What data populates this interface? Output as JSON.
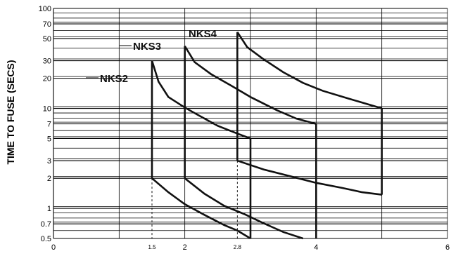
{
  "chart_data": {
    "type": "line",
    "title": "",
    "xlabel": "",
    "ylabel": "TIME TO FUSE (SECS)",
    "y_scale": "log",
    "xlim": [
      0,
      6
    ],
    "ylim": [
      0.5,
      100
    ],
    "x_ticks": [
      {
        "value": 0,
        "label": "0",
        "size": "normal"
      },
      {
        "value": 1.5,
        "label": "1.5",
        "size": "small"
      },
      {
        "value": 2,
        "label": "2",
        "size": "normal"
      },
      {
        "value": 2.8,
        "label": "2.8",
        "size": "small"
      },
      {
        "value": 4,
        "label": "4",
        "size": "normal"
      },
      {
        "value": 6,
        "label": "6",
        "size": "normal"
      }
    ],
    "y_ticks": [
      {
        "value": 0.5,
        "label": "0.5"
      },
      {
        "value": 0.7,
        "label": "0.7"
      },
      {
        "value": 1,
        "label": "1"
      },
      {
        "value": 2,
        "label": "2"
      },
      {
        "value": 3,
        "label": "3"
      },
      {
        "value": 5,
        "label": "5"
      },
      {
        "value": 7,
        "label": "7"
      },
      {
        "value": 10,
        "label": "10"
      },
      {
        "value": 20,
        "label": "20"
      },
      {
        "value": 30,
        "label": "30"
      },
      {
        "value": 50,
        "label": "50"
      },
      {
        "value": 70,
        "label": "70"
      },
      {
        "value": 100,
        "label": "100"
      }
    ],
    "minor_y_grid": [
      0.6,
      0.8,
      0.9,
      4,
      6,
      8,
      9,
      40,
      60,
      80,
      90
    ],
    "x_grid": [
      1,
      2,
      3,
      4,
      5,
      6
    ],
    "grid": true,
    "series": [
      {
        "name": "NKS2",
        "upper": [
          [
            1.5,
            30
          ],
          [
            1.6,
            18.5
          ],
          [
            1.75,
            13
          ],
          [
            2.0,
            10.2
          ],
          [
            2.2,
            8.6
          ],
          [
            2.5,
            6.7
          ],
          [
            2.8,
            5.6
          ],
          [
            3.0,
            5
          ]
        ],
        "lower": [
          [
            1.5,
            2
          ],
          [
            1.75,
            1.45
          ],
          [
            2.0,
            1.1
          ],
          [
            2.3,
            0.86
          ],
          [
            2.6,
            0.68
          ],
          [
            2.8,
            0.6
          ],
          [
            3.0,
            0.5
          ]
        ],
        "verticals": [
          [
            [
              1.5,
              2
            ],
            [
              1.5,
              30
            ]
          ],
          [
            [
              3.0,
              5
            ],
            [
              3.0,
              0.5
            ]
          ]
        ],
        "dashed_from": [
          1.5,
          2
        ]
      },
      {
        "name": "NKS3",
        "upper": [
          [
            2.0,
            42
          ],
          [
            2.15,
            29
          ],
          [
            2.4,
            22
          ],
          [
            2.7,
            17
          ],
          [
            3.0,
            13
          ],
          [
            3.4,
            9.6
          ],
          [
            3.7,
            7.9
          ],
          [
            4.0,
            7
          ]
        ],
        "lower": [
          [
            2.0,
            2
          ],
          [
            2.3,
            1.4
          ],
          [
            2.6,
            1.06
          ],
          [
            2.9,
            0.88
          ],
          [
            3.2,
            0.71
          ],
          [
            3.5,
            0.58
          ],
          [
            3.8,
            0.5
          ]
        ],
        "verticals": [
          [
            [
              2.0,
              2
            ],
            [
              2.0,
              42
            ]
          ],
          [
            [
              4.0,
              7
            ],
            [
              4.0,
              0.5
            ]
          ]
        ],
        "dashed_from": null
      },
      {
        "name": "NKS4",
        "upper": [
          [
            2.8,
            58
          ],
          [
            2.95,
            41
          ],
          [
            3.2,
            31
          ],
          [
            3.5,
            23
          ],
          [
            3.8,
            18
          ],
          [
            4.1,
            15
          ],
          [
            4.5,
            12.5
          ],
          [
            5.0,
            10
          ]
        ],
        "lower": [
          [
            2.8,
            3
          ],
          [
            3.2,
            2.45
          ],
          [
            3.6,
            2.1
          ],
          [
            4.0,
            1.8
          ],
          [
            4.4,
            1.6
          ],
          [
            4.7,
            1.45
          ],
          [
            5.0,
            1.37
          ]
        ],
        "verticals": [
          [
            [
              2.8,
              3
            ],
            [
              2.8,
              58
            ]
          ],
          [
            [
              5.0,
              10
            ],
            [
              5.0,
              1.37
            ]
          ]
        ],
        "dashed_from": [
          2.8,
          3
        ]
      }
    ],
    "annotations": [
      {
        "text": "NKS2",
        "series": "NKS2"
      },
      {
        "text": "NKS3",
        "series": "NKS3"
      },
      {
        "text": "NKS4",
        "series": "NKS4"
      }
    ],
    "legend": "none"
  }
}
